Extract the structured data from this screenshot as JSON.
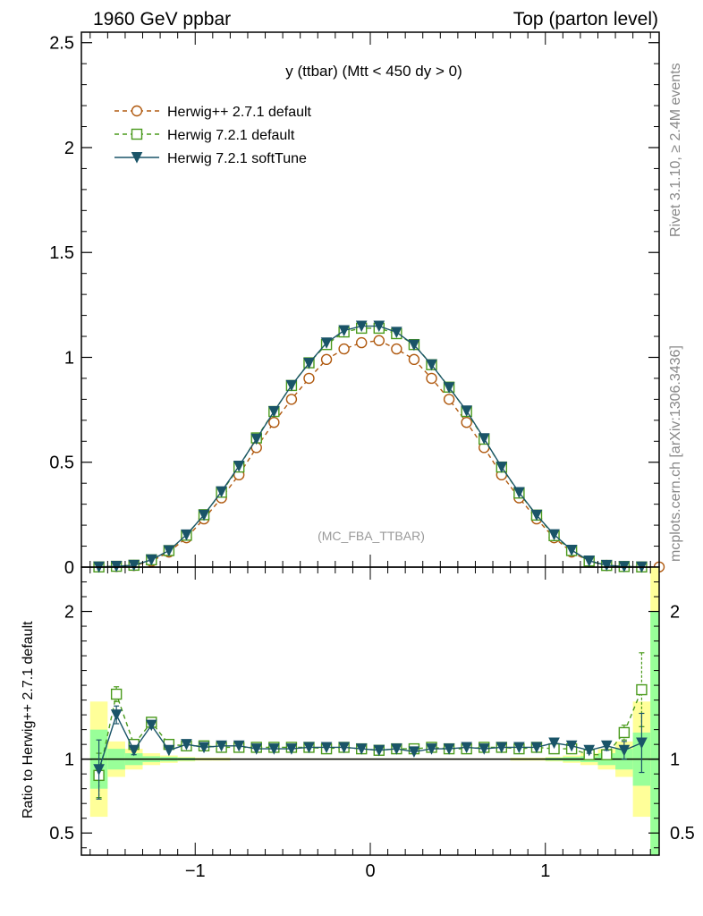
{
  "header": {
    "left": "1960 GeV ppbar",
    "right": "Top (parton level)"
  },
  "side_labels": {
    "rivet": "Rivet 3.1.10, ≥ 2.4M events",
    "mcplots": "mcplots.cern.ch [arXiv:1306.3436]"
  },
  "chart_data": {
    "type": "line",
    "title": "y (ttbar) (Mtt < 450 dy > 0)",
    "watermark": "(MC_FBA_TTBAR)",
    "ratio_ylabel": "Ratio to Herwig++ 2.7.1 default",
    "xlim": [
      -1.65,
      1.65
    ],
    "ylim": [
      0,
      2.55
    ],
    "ratio_ylim": [
      0.35,
      2.3
    ],
    "x_ticks": [
      -1,
      0,
      1
    ],
    "x_tick_labels": [
      "−1",
      "0",
      "1"
    ],
    "y_ticks": [
      0,
      0.5,
      1,
      1.5,
      2,
      2.5
    ],
    "y_tick_labels": [
      "0",
      "0.5",
      "1",
      "1.5",
      "2",
      "2.5"
    ],
    "ratio_y_ticks": [
      0.5,
      1,
      2
    ],
    "ratio_y_tick_labels": [
      "0.5",
      "1",
      "2"
    ],
    "legend_position": "top-left",
    "x": [
      -1.55,
      -1.45,
      -1.35,
      -1.25,
      -1.15,
      -1.05,
      -0.95,
      -0.85,
      -0.75,
      -0.65,
      -0.55,
      -0.45,
      -0.35,
      -0.25,
      -0.15,
      -0.05,
      0.05,
      0.15,
      0.25,
      0.35,
      0.45,
      0.55,
      0.65,
      0.75,
      0.85,
      0.95,
      1.05,
      1.15,
      1.25,
      1.35,
      1.45,
      1.55,
      1.65
    ],
    "series": [
      {
        "name": "Herwig++ 2.7.1 default",
        "color": "#b05a10",
        "marker": "open-circle",
        "style": "dashed",
        "values": [
          0.001,
          0.003,
          0.008,
          0.028,
          0.072,
          0.14,
          0.23,
          0.33,
          0.44,
          0.57,
          0.69,
          0.8,
          0.9,
          0.99,
          1.04,
          1.07,
          1.08,
          1.04,
          0.99,
          0.9,
          0.8,
          0.69,
          0.57,
          0.44,
          0.33,
          0.23,
          0.14,
          0.072,
          0.028,
          0.008,
          0.003,
          0.001,
          0.001
        ],
        "ratio": [
          1,
          1,
          1,
          1,
          1,
          1,
          1,
          1,
          1,
          1,
          1,
          1,
          1,
          1,
          1,
          1,
          1,
          1,
          1,
          1,
          1,
          1,
          1,
          1,
          1,
          1,
          1,
          1,
          1,
          1,
          1,
          1,
          null
        ]
      },
      {
        "name": "Herwig 7.2.1 default",
        "color": "#4a9a1c",
        "marker": "open-square",
        "style": "dashed",
        "values": [
          0.001,
          0.004,
          0.009,
          0.035,
          0.079,
          0.152,
          0.25,
          0.357,
          0.477,
          0.616,
          0.742,
          0.866,
          0.974,
          1.061,
          1.121,
          1.139,
          1.139,
          1.113,
          1.061,
          0.965,
          0.858,
          0.742,
          0.61,
          0.477,
          0.353,
          0.248,
          0.15,
          0.079,
          0.029,
          0.008,
          0.003,
          0.001,
          null
        ],
        "ratio": [
          0.89,
          1.44,
          1.1,
          1.25,
          1.1,
          1.09,
          1.09,
          1.08,
          1.08,
          1.08,
          1.08,
          1.08,
          1.08,
          1.07,
          1.08,
          1.07,
          1.06,
          1.07,
          1.07,
          1.08,
          1.07,
          1.07,
          1.08,
          1.08,
          1.07,
          1.08,
          1.07,
          1.07,
          1.03,
          1.03,
          1.18,
          1.47,
          null
        ],
        "ratio_err": [
          0.15,
          0.05,
          0.03,
          0.02,
          0.01,
          0.01,
          0.01,
          0.01,
          0.01,
          0.01,
          0.01,
          0.01,
          0.01,
          0.01,
          0.01,
          0.01,
          0.01,
          0.01,
          0.01,
          0.01,
          0.01,
          0.01,
          0.01,
          0.01,
          0.01,
          0.01,
          0.01,
          0.01,
          0.02,
          0.03,
          0.05,
          0.25,
          null
        ]
      },
      {
        "name": "Herwig 7.2.1 softTune",
        "color": "#1a5468",
        "marker": "filled-triangle-down",
        "style": "solid",
        "values": [
          0.001,
          0.004,
          0.009,
          0.035,
          0.079,
          0.154,
          0.248,
          0.36,
          0.482,
          0.611,
          0.742,
          0.866,
          0.972,
          1.069,
          1.128,
          1.149,
          1.149,
          1.12,
          1.059,
          0.965,
          0.856,
          0.745,
          0.613,
          0.477,
          0.356,
          0.248,
          0.155,
          0.081,
          0.03,
          0.009,
          0.003,
          0.001,
          null
        ],
        "ratio": [
          0.93,
          1.3,
          1.06,
          1.23,
          1.06,
          1.1,
          1.08,
          1.09,
          1.09,
          1.07,
          1.07,
          1.07,
          1.08,
          1.08,
          1.08,
          1.07,
          1.06,
          1.07,
          1.05,
          1.07,
          1.07,
          1.08,
          1.07,
          1.08,
          1.08,
          1.08,
          1.11,
          1.09,
          1.06,
          1.09,
          1.06,
          1.11,
          null
        ],
        "ratio_err": [
          0.2,
          0.06,
          0.03,
          0.02,
          0.01,
          0.01,
          0.01,
          0.01,
          0.01,
          0.01,
          0.01,
          0.01,
          0.01,
          0.01,
          0.01,
          0.01,
          0.01,
          0.01,
          0.01,
          0.01,
          0.01,
          0.01,
          0.01,
          0.01,
          0.01,
          0.01,
          0.01,
          0.01,
          0.02,
          0.03,
          0.06,
          0.2,
          null
        ]
      }
    ],
    "bands": {
      "edges": [
        -1.6,
        -1.5,
        -1.4,
        -1.3,
        -1.2,
        -1.1,
        -1.0,
        -0.9,
        -0.8,
        -0.7,
        -0.6,
        -0.5,
        -0.4,
        -0.3,
        -0.2,
        -0.1,
        0.0,
        0.1,
        0.2,
        0.3,
        0.4,
        0.5,
        0.6,
        0.7,
        0.8,
        0.9,
        1.0,
        1.1,
        1.2,
        1.3,
        1.4,
        1.5,
        1.6,
        1.7
      ],
      "yellow_lo": [
        0.61,
        0.88,
        0.93,
        0.96,
        0.975,
        0.985,
        0.99,
        0.99,
        0.995,
        0.995,
        0.995,
        0.995,
        0.995,
        0.995,
        0.995,
        0.995,
        0.995,
        0.995,
        0.995,
        0.995,
        0.995,
        0.995,
        0.995,
        0.995,
        0.99,
        0.99,
        0.985,
        0.975,
        0.96,
        0.93,
        0.88,
        0.61,
        0.35
      ],
      "yellow_hi": [
        1.39,
        1.12,
        1.07,
        1.04,
        1.025,
        1.015,
        1.01,
        1.01,
        1.005,
        1.005,
        1.005,
        1.005,
        1.005,
        1.005,
        1.005,
        1.005,
        1.005,
        1.005,
        1.005,
        1.005,
        1.005,
        1.005,
        1.005,
        1.005,
        1.01,
        1.01,
        1.015,
        1.025,
        1.04,
        1.07,
        1.12,
        1.39,
        2.3
      ],
      "green_lo": [
        0.8,
        0.93,
        0.96,
        0.98,
        0.985,
        0.99,
        0.995,
        0.995,
        0.997,
        0.997,
        0.997,
        0.997,
        0.997,
        0.997,
        0.997,
        0.997,
        0.997,
        0.997,
        0.997,
        0.997,
        0.997,
        0.997,
        0.997,
        0.997,
        0.995,
        0.995,
        0.99,
        0.985,
        0.98,
        0.96,
        0.93,
        0.82,
        0.35
      ],
      "green_hi": [
        1.2,
        1.07,
        1.04,
        1.02,
        1.015,
        1.01,
        1.005,
        1.005,
        1.003,
        1.003,
        1.003,
        1.003,
        1.003,
        1.003,
        1.003,
        1.003,
        1.003,
        1.003,
        1.003,
        1.003,
        1.003,
        1.003,
        1.003,
        1.003,
        1.005,
        1.005,
        1.01,
        1.015,
        1.02,
        1.04,
        1.07,
        1.18,
        2.0
      ]
    }
  }
}
